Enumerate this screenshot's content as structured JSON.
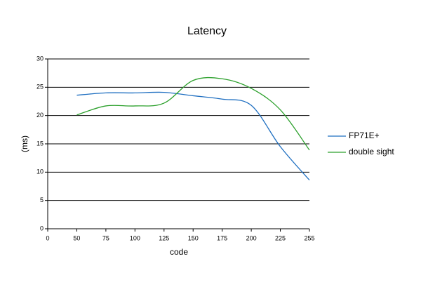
{
  "chart_data": {
    "type": "line",
    "title": "Latency",
    "x_label": "code",
    "y_label": "(ms)",
    "categories": [
      0,
      50,
      75,
      100,
      125,
      150,
      175,
      200,
      225,
      255
    ],
    "series": [
      {
        "name": "FP71E+",
        "color": "#1f6fc1",
        "values": [
          null,
          23.6,
          24,
          24,
          24.1,
          23.5,
          22.9,
          21.8,
          14.5,
          8.6
        ]
      },
      {
        "name": "double sight",
        "color": "#2ca02c",
        "values": [
          null,
          20.1,
          21.7,
          21.7,
          22.2,
          26.2,
          26.5,
          24.8,
          21.0,
          13.9
        ]
      }
    ],
    "ylim": [
      0,
      30
    ],
    "yticks": [
      0,
      5,
      10,
      15,
      20,
      25,
      30
    ],
    "grid": true,
    "smooth": true,
    "legend": "right"
  }
}
